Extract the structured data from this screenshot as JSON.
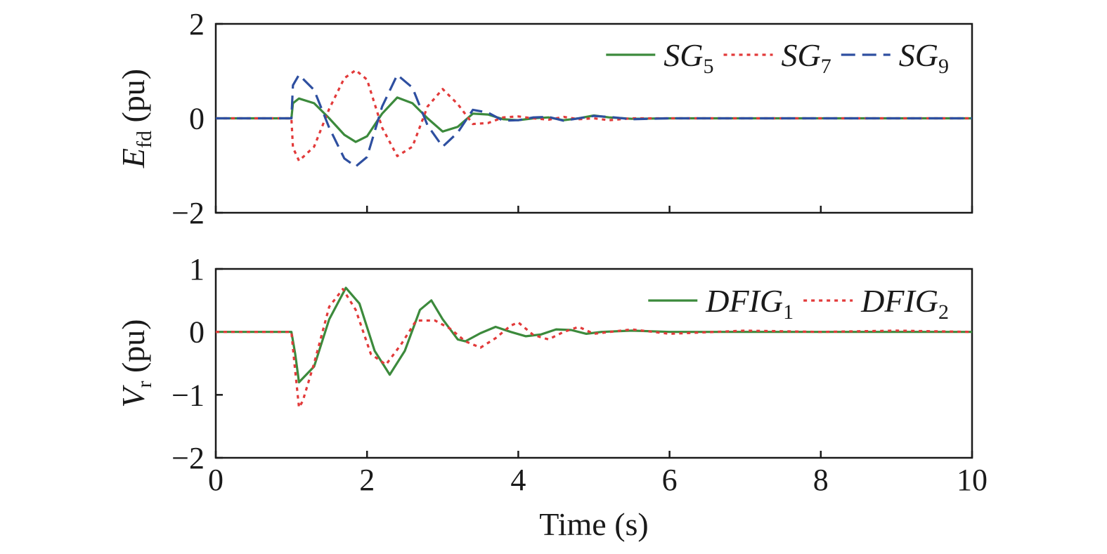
{
  "colors": {
    "green": "#3c8a3c",
    "red": "#e23a3a",
    "blue": "#2e4fa0"
  },
  "chart_data": [
    {
      "type": "line",
      "ylabel": {
        "main": "E",
        "sub": "fd",
        "unit": "(pu)"
      },
      "xlim": [
        0,
        10
      ],
      "ylim": [
        -2,
        2
      ],
      "x_ticks": [
        "0",
        "2",
        "4",
        "6",
        "8",
        "10"
      ],
      "y_ticks": [
        {
          "v": 2,
          "label": "2"
        },
        {
          "v": 0,
          "label": "0"
        },
        {
          "v": -2,
          "label": "−2"
        }
      ],
      "legend_position": "top-right",
      "series": [
        {
          "name": "SG",
          "sub": "5",
          "color": "#3c8a3c",
          "dash": "solid",
          "x": [
            0,
            1.0,
            1.02,
            1.1,
            1.3,
            1.5,
            1.7,
            1.85,
            2.0,
            2.2,
            2.4,
            2.6,
            2.8,
            3.0,
            3.2,
            3.4,
            3.6,
            3.8,
            4.0,
            4.2,
            4.4,
            4.6,
            4.8,
            5.0,
            5.2,
            5.5,
            6.0,
            7.0,
            8.0,
            9.0,
            10.0
          ],
          "y": [
            0,
            0,
            0.32,
            0.42,
            0.32,
            0.0,
            -0.35,
            -0.5,
            -0.38,
            0.1,
            0.44,
            0.32,
            0.0,
            -0.28,
            -0.18,
            0.1,
            0.08,
            -0.02,
            -0.04,
            0.0,
            0.02,
            -0.04,
            0.0,
            0.06,
            0.02,
            -0.01,
            0.0,
            0.0,
            0.0,
            0.0,
            0.0
          ]
        },
        {
          "name": "SG",
          "sub": "7",
          "color": "#e23a3a",
          "dash": "dotted",
          "x": [
            0,
            1.0,
            1.02,
            1.1,
            1.3,
            1.5,
            1.7,
            1.85,
            2.0,
            2.2,
            2.4,
            2.6,
            2.8,
            3.0,
            3.2,
            3.4,
            3.6,
            3.8,
            4.0,
            4.2,
            4.4,
            4.6,
            4.8,
            5.0,
            5.2,
            5.5,
            6.0,
            7.0,
            8.0,
            9.0,
            10.0
          ],
          "y": [
            0,
            0,
            -0.62,
            -0.9,
            -0.6,
            0.2,
            0.85,
            1.02,
            0.82,
            -0.2,
            -0.8,
            -0.6,
            0.25,
            0.62,
            0.3,
            -0.12,
            -0.1,
            0.02,
            0.04,
            0.0,
            -0.03,
            0.03,
            -0.02,
            0.0,
            -0.04,
            0.0,
            0.0,
            0.0,
            0.0,
            0.0,
            0.0
          ]
        },
        {
          "name": "SG",
          "sub": "9",
          "color": "#2e4fa0",
          "dash": "dashed",
          "x": [
            0,
            1.0,
            1.02,
            1.1,
            1.3,
            1.5,
            1.7,
            1.85,
            2.0,
            2.2,
            2.4,
            2.6,
            2.8,
            3.0,
            3.2,
            3.4,
            3.6,
            3.8,
            4.0,
            4.2,
            4.4,
            4.6,
            4.8,
            5.0,
            5.2,
            5.5,
            6.0,
            7.0,
            8.0,
            9.0,
            10.0
          ],
          "y": [
            0,
            0,
            0.7,
            0.92,
            0.6,
            -0.2,
            -0.85,
            -1.02,
            -0.82,
            0.25,
            0.92,
            0.65,
            -0.15,
            -0.6,
            -0.3,
            0.18,
            0.12,
            -0.05,
            -0.04,
            0.02,
            0.03,
            -0.05,
            0.0,
            0.05,
            0.03,
            -0.02,
            0.0,
            0.0,
            0.0,
            0.0,
            0.0
          ]
        }
      ]
    },
    {
      "type": "line",
      "ylabel": {
        "main": "V",
        "sub": "r",
        "unit": "(pu)"
      },
      "xlabel": "Time (s)",
      "xlim": [
        0,
        10
      ],
      "ylim": [
        -2,
        1
      ],
      "x_ticks": [
        "0",
        "2",
        "4",
        "6",
        "8",
        "10"
      ],
      "y_ticks": [
        {
          "v": 1,
          "label": "1"
        },
        {
          "v": 0,
          "label": "0"
        },
        {
          "v": -1,
          "label": "−1"
        },
        {
          "v": -2,
          "label": "−2"
        }
      ],
      "legend_position": "top-right",
      "series": [
        {
          "name": "DFIG",
          "sub": "1",
          "color": "#3c8a3c",
          "dash": "solid",
          "x": [
            0,
            1.0,
            1.05,
            1.1,
            1.3,
            1.5,
            1.72,
            1.9,
            2.1,
            2.3,
            2.5,
            2.7,
            2.85,
            3.0,
            3.2,
            3.3,
            3.5,
            3.7,
            3.9,
            4.1,
            4.3,
            4.5,
            4.7,
            4.9,
            5.1,
            5.5,
            6.0,
            7.0,
            8.0,
            9.0,
            10.0
          ],
          "y": [
            0,
            0,
            -0.35,
            -0.8,
            -0.55,
            0.2,
            0.7,
            0.45,
            -0.3,
            -0.68,
            -0.3,
            0.35,
            0.5,
            0.2,
            -0.12,
            -0.15,
            -0.02,
            0.08,
            0.0,
            -0.07,
            -0.04,
            0.04,
            0.03,
            -0.03,
            0.0,
            0.02,
            0.0,
            0.0,
            0.0,
            0.0,
            0.0
          ]
        },
        {
          "name": "DFIG",
          "sub": "2",
          "color": "#e23a3a",
          "dash": "dotted",
          "x": [
            0,
            1.0,
            1.04,
            1.1,
            1.15,
            1.3,
            1.5,
            1.68,
            1.85,
            2.05,
            2.25,
            2.45,
            2.65,
            2.9,
            3.1,
            3.3,
            3.5,
            3.7,
            3.9,
            4.0,
            4.2,
            4.4,
            4.6,
            4.8,
            5.0,
            5.5,
            6.0,
            7.0,
            8.0,
            9.0,
            10.0
          ],
          "y": [
            0,
            0,
            -0.5,
            -1.2,
            -1.1,
            -0.5,
            0.4,
            0.68,
            0.35,
            -0.35,
            -0.52,
            -0.2,
            0.18,
            0.18,
            0.05,
            -0.15,
            -0.25,
            -0.1,
            0.1,
            0.15,
            -0.05,
            -0.12,
            0.0,
            0.08,
            -0.03,
            0.04,
            -0.03,
            0.02,
            0.0,
            0.02,
            0.0
          ]
        }
      ]
    }
  ]
}
